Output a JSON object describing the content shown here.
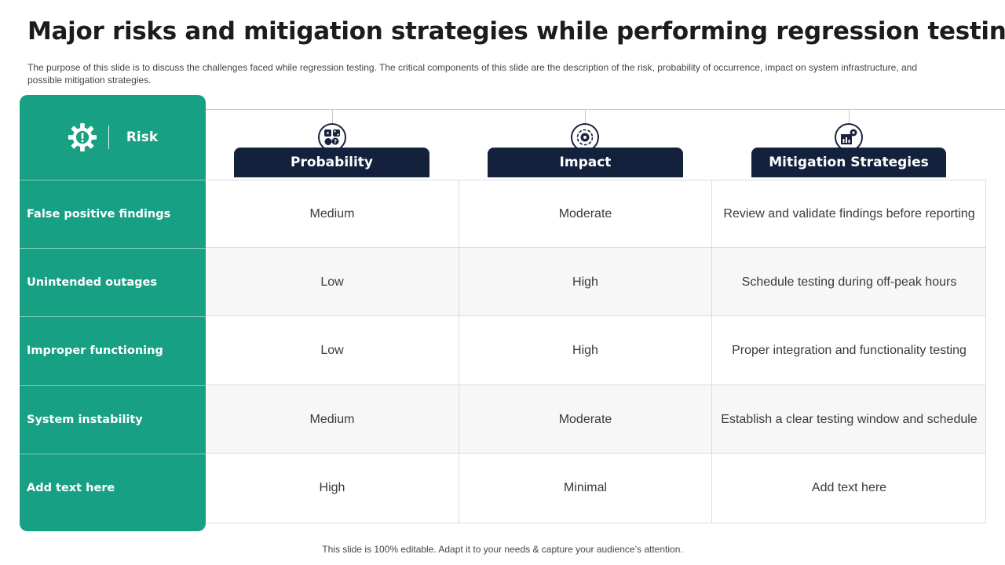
{
  "title": "Major risks and mitigation strategies while performing regression testing",
  "subtitle": "The purpose of this slide is to discuss the challenges faced while regression testing. The critical components of this slide are the description of the risk, probability of occurrence, impact on system infrastructure, and possible mitigation strategies.",
  "table": {
    "risk_header": "Risk",
    "risk_header_icon": "gear-warning-icon",
    "columns": [
      {
        "label": "Probability",
        "icon": "dice-question-icon"
      },
      {
        "label": "Impact",
        "icon": "target-gear-icon"
      },
      {
        "label": "Mitigation Strategies",
        "icon": "chart-gear-icon"
      }
    ],
    "rows": [
      {
        "risk": "False positive findings",
        "probability": "Medium",
        "impact": "Moderate",
        "mitigation": "Review and validate findings before reporting"
      },
      {
        "risk": "Unintended outages",
        "probability": "Low",
        "impact": "High",
        "mitigation": "Schedule testing during off-peak hours"
      },
      {
        "risk": "Improper functioning",
        "probability": "Low",
        "impact": "High",
        "mitigation": "Proper integration and functionality testing"
      },
      {
        "risk": "System instability",
        "probability": "Medium",
        "impact": "Moderate",
        "mitigation": "Establish a clear testing window and schedule"
      },
      {
        "risk": "Add text here",
        "probability": "High",
        "impact": "Minimal",
        "mitigation": "Add text here"
      }
    ]
  },
  "colors": {
    "accent_green": "#17a083",
    "navy": "#14213d",
    "row_shade": "#f7f7f7"
  },
  "footer": "This slide is 100% editable. Adapt it to your needs & capture your audience’s attention."
}
